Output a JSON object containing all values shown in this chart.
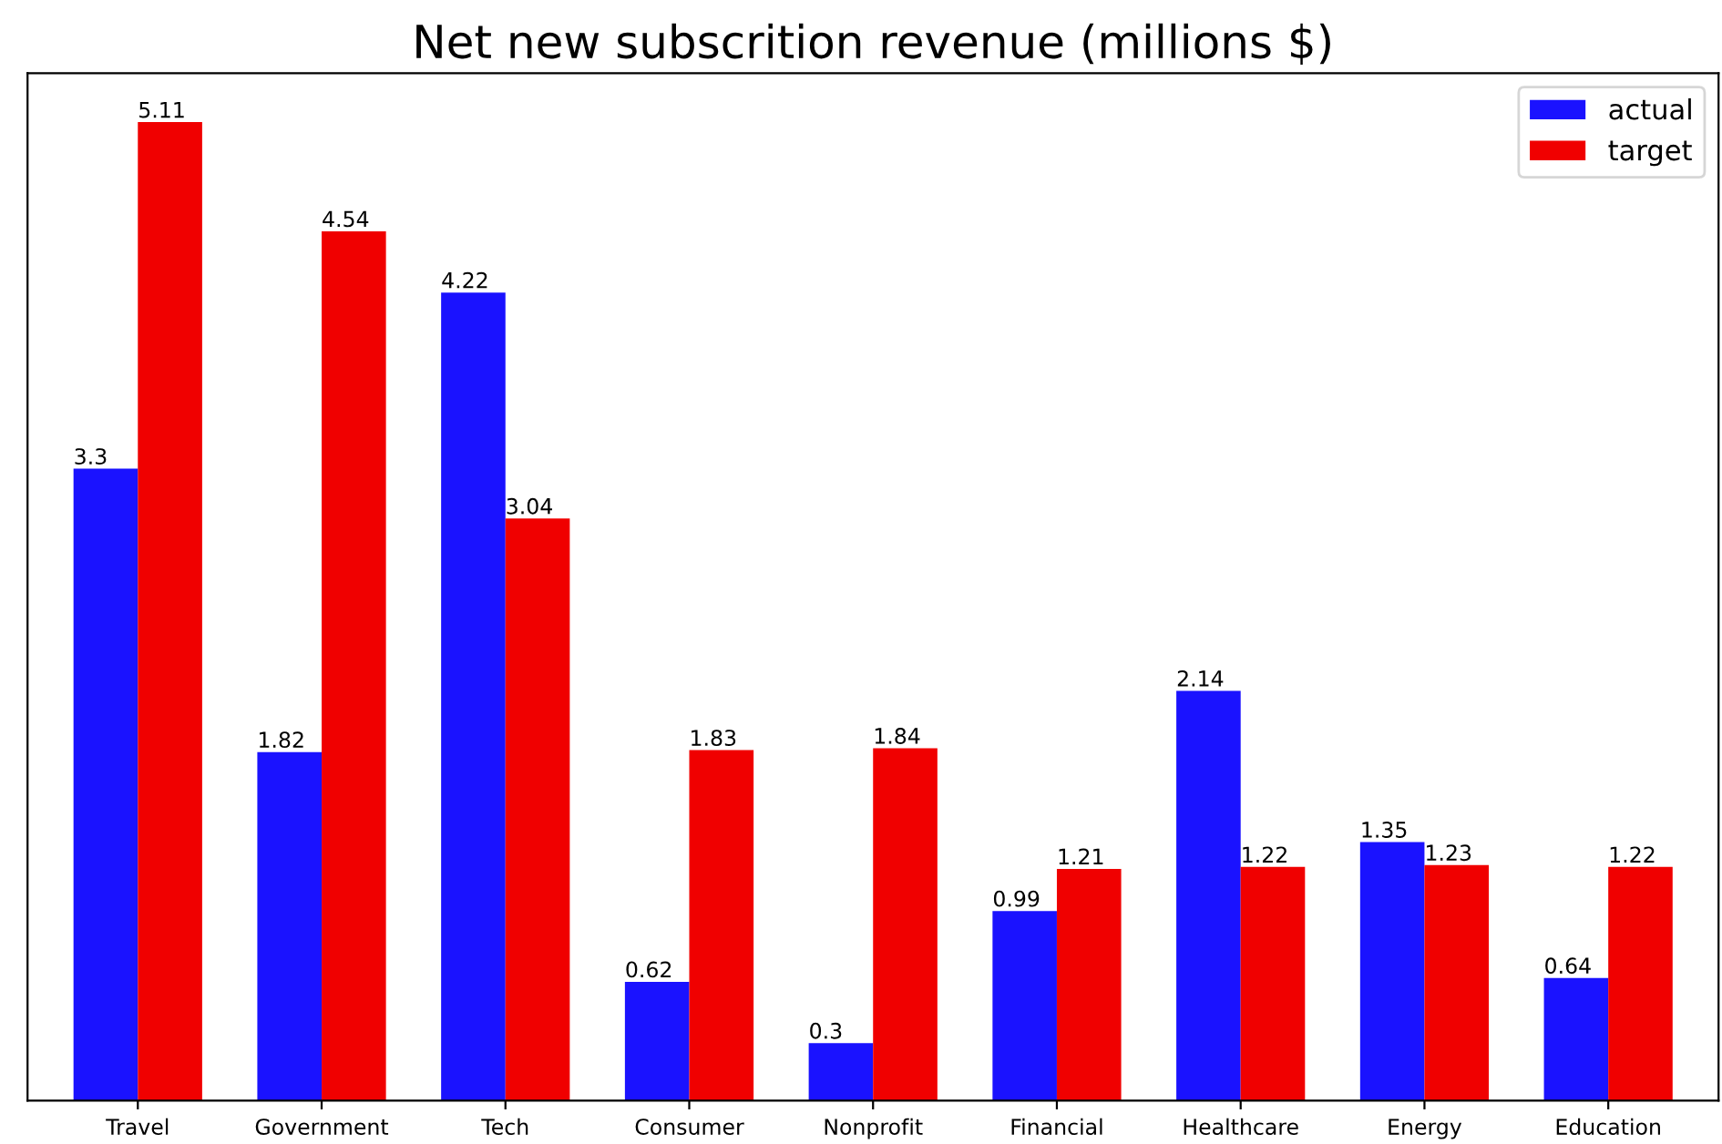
{
  "chart_data": {
    "type": "bar",
    "title": "Net new subscrition revenue (millions $)",
    "categories": [
      "Travel",
      "Government",
      "Tech",
      "Consumer",
      "Nonprofit",
      "Financial",
      "Healthcare",
      "Energy",
      "Education"
    ],
    "series": [
      {
        "name": "actual",
        "color": "#1a12ff",
        "values": [
          3.3,
          1.82,
          4.22,
          0.62,
          0.3,
          0.99,
          2.14,
          1.35,
          0.64
        ]
      },
      {
        "name": "target",
        "color": "#f00000",
        "values": [
          5.11,
          4.54,
          3.04,
          1.83,
          1.84,
          1.21,
          1.22,
          1.23,
          1.22
        ]
      }
    ],
    "data_labels": true,
    "legend": "top right",
    "tick_labels": "x",
    "grid": false
  }
}
